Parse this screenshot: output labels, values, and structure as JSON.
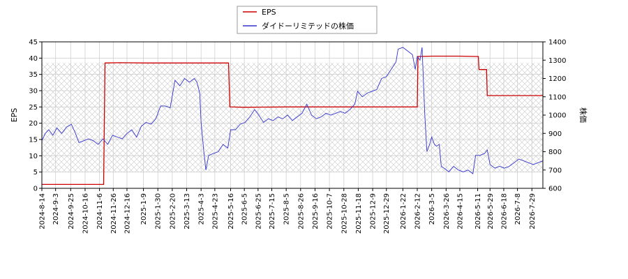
{
  "chart_data": {
    "type": "line",
    "ylabel_left": "EPS",
    "ylabel_right": "株価",
    "ylim_left": [
      0,
      45
    ],
    "ylim_right": [
      600,
      1400
    ],
    "yticks_left": [
      "0",
      "5",
      "10",
      "15",
      "20",
      "25",
      "30",
      "35",
      "40",
      "45"
    ],
    "yticks_right": [
      "600",
      "700",
      "800",
      "900",
      "1000",
      "1100",
      "1200",
      "1300",
      "1400"
    ],
    "x_range": [
      "2024-8-14",
      "2026-8-14"
    ],
    "x_ticks": [
      "2024-8-14",
      "2024-9-3",
      "2024-9-25",
      "2024-10-16",
      "2024-11-6",
      "2024-11-26",
      "2024-12-16",
      "2025-1-9",
      "2025-1-30",
      "2025-2-20",
      "2025-3-13",
      "2025-4-3",
      "2025-4-23",
      "2025-5-16",
      "2025-6-5",
      "2025-6-25",
      "2025-7-15",
      "2025-8-5",
      "2025-8-26",
      "2025-9-16",
      "2025-10-7",
      "2025-10-28",
      "2025-11-18",
      "2025-12-9",
      "2025-12-29",
      "2026-1-22",
      "2026-2-12",
      "2026-3-5",
      "2026-3-26",
      "2026-4-15",
      "2026-5-11",
      "2026-5-29",
      "2026-6-18",
      "2026-7-8",
      "2026-7-29"
    ],
    "grid": true,
    "legend_position": "top-center",
    "series": [
      {
        "name": "EPS",
        "color": "#cc0000",
        "axis": "left",
        "points": [
          [
            "2024-8-14",
            1.2
          ],
          [
            "2024-11-12",
            1.2
          ],
          [
            "2024-11-14",
            38.5
          ],
          [
            "2024-12-5",
            38.6
          ],
          [
            "2025-1-15",
            38.5
          ],
          [
            "2025-4-1",
            38.5
          ],
          [
            "2025-5-13",
            38.5
          ],
          [
            "2025-5-15",
            25.0
          ],
          [
            "2025-6-5",
            24.9
          ],
          [
            "2025-8-5",
            25.0
          ],
          [
            "2026-2-12",
            25.0
          ],
          [
            "2026-2-13",
            40.5
          ],
          [
            "2026-3-5",
            40.6
          ],
          [
            "2026-4-15",
            40.6
          ],
          [
            "2026-5-12",
            40.5
          ],
          [
            "2026-5-13",
            36.5
          ],
          [
            "2026-5-24",
            36.5
          ],
          [
            "2026-5-25",
            28.5
          ],
          [
            "2026-8-14",
            28.5
          ]
        ]
      },
      {
        "name": "ダイドーリミテッドの株価",
        "color": "#3333cc",
        "axis": "right",
        "points": [
          [
            "2024-8-14",
            860
          ],
          [
            "2024-8-19",
            900
          ],
          [
            "2024-8-24",
            920
          ],
          [
            "2024-8-30",
            890
          ],
          [
            "2024-9-5",
            930
          ],
          [
            "2024-9-12",
            900
          ],
          [
            "2024-9-19",
            935
          ],
          [
            "2024-9-26",
            950
          ],
          [
            "2024-10-2",
            900
          ],
          [
            "2024-10-7",
            850
          ],
          [
            "2024-10-14",
            860
          ],
          [
            "2024-10-21",
            870
          ],
          [
            "2024-10-28",
            860
          ],
          [
            "2024-11-4",
            840
          ],
          [
            "2024-11-11",
            870
          ],
          [
            "2024-11-18",
            840
          ],
          [
            "2024-11-25",
            890
          ],
          [
            "2024-12-2",
            880
          ],
          [
            "2024-12-9",
            870
          ],
          [
            "2024-12-16",
            900
          ],
          [
            "2024-12-23",
            920
          ],
          [
            "2024-12-30",
            880
          ],
          [
            "2025-1-6",
            940
          ],
          [
            "2025-1-13",
            960
          ],
          [
            "2025-1-20",
            950
          ],
          [
            "2025-1-27",
            980
          ],
          [
            "2025-2-3",
            1050
          ],
          [
            "2025-2-10",
            1050
          ],
          [
            "2025-2-17",
            1040
          ],
          [
            "2025-2-24",
            1190
          ],
          [
            "2025-3-3",
            1160
          ],
          [
            "2025-3-10",
            1200
          ],
          [
            "2025-3-17",
            1180
          ],
          [
            "2025-3-24",
            1200
          ],
          [
            "2025-3-28",
            1180
          ],
          [
            "2025-4-1",
            1120
          ],
          [
            "2025-4-3",
            960
          ],
          [
            "2025-4-7",
            800
          ],
          [
            "2025-4-10",
            700
          ],
          [
            "2025-4-14",
            780
          ],
          [
            "2025-4-21",
            790
          ],
          [
            "2025-4-28",
            800
          ],
          [
            "2025-5-5",
            840
          ],
          [
            "2025-5-12",
            820
          ],
          [
            "2025-5-16",
            920
          ],
          [
            "2025-5-23",
            920
          ],
          [
            "2025-5-30",
            950
          ],
          [
            "2025-6-6",
            960
          ],
          [
            "2025-6-13",
            990
          ],
          [
            "2025-6-20",
            1030
          ],
          [
            "2025-6-26",
            1000
          ],
          [
            "2025-7-3",
            960
          ],
          [
            "2025-7-10",
            980
          ],
          [
            "2025-7-17",
            970
          ],
          [
            "2025-7-24",
            990
          ],
          [
            "2025-7-31",
            980
          ],
          [
            "2025-8-7",
            1000
          ],
          [
            "2025-8-14",
            970
          ],
          [
            "2025-8-21",
            990
          ],
          [
            "2025-8-28",
            1010
          ],
          [
            "2025-9-4",
            1060
          ],
          [
            "2025-9-11",
            1000
          ],
          [
            "2025-9-18",
            980
          ],
          [
            "2025-9-25",
            990
          ],
          [
            "2025-10-2",
            1010
          ],
          [
            "2025-10-9",
            1000
          ],
          [
            "2025-10-16",
            1010
          ],
          [
            "2025-10-23",
            1020
          ],
          [
            "2025-10-30",
            1010
          ],
          [
            "2025-11-6",
            1030
          ],
          [
            "2025-11-13",
            1060
          ],
          [
            "2025-11-17",
            1130
          ],
          [
            "2025-11-24",
            1100
          ],
          [
            "2025-12-1",
            1120
          ],
          [
            "2025-12-8",
            1130
          ],
          [
            "2025-12-15",
            1140
          ],
          [
            "2025-12-22",
            1200
          ],
          [
            "2025-12-29",
            1210
          ],
          [
            "2026-1-5",
            1250
          ],
          [
            "2026-1-12",
            1290
          ],
          [
            "2026-1-15",
            1360
          ],
          [
            "2026-1-22",
            1370
          ],
          [
            "2026-1-29",
            1350
          ],
          [
            "2026-2-5",
            1330
          ],
          [
            "2026-2-9",
            1250
          ],
          [
            "2026-2-12",
            1320
          ],
          [
            "2026-2-16",
            1300
          ],
          [
            "2026-2-19",
            1370
          ],
          [
            "2026-2-23",
            1000
          ],
          [
            "2026-2-26",
            800
          ],
          [
            "2026-3-2",
            840
          ],
          [
            "2026-3-5",
            880
          ],
          [
            "2026-3-9",
            840
          ],
          [
            "2026-3-12",
            830
          ],
          [
            "2026-3-16",
            840
          ],
          [
            "2026-3-19",
            720
          ],
          [
            "2026-3-23",
            710
          ],
          [
            "2026-3-30",
            690
          ],
          [
            "2026-4-6",
            720
          ],
          [
            "2026-4-13",
            700
          ],
          [
            "2026-4-20",
            690
          ],
          [
            "2026-4-27",
            700
          ],
          [
            "2026-5-4",
            680
          ],
          [
            "2026-5-8",
            780
          ],
          [
            "2026-5-14",
            780
          ],
          [
            "2026-5-21",
            790
          ],
          [
            "2026-5-25",
            810
          ],
          [
            "2026-5-29",
            730
          ],
          [
            "2026-6-5",
            710
          ],
          [
            "2026-6-12",
            720
          ],
          [
            "2026-6-19",
            710
          ],
          [
            "2026-6-26",
            720
          ],
          [
            "2026-7-3",
            740
          ],
          [
            "2026-7-10",
            760
          ],
          [
            "2026-7-17",
            750
          ],
          [
            "2026-7-24",
            740
          ],
          [
            "2026-7-31",
            730
          ],
          [
            "2026-8-7",
            740
          ],
          [
            "2026-8-14",
            750
          ]
        ]
      }
    ]
  }
}
